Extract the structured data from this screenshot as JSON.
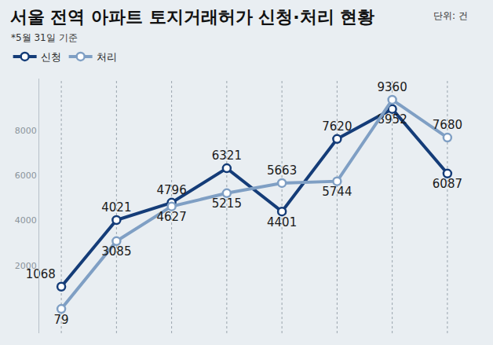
{
  "chart_data": {
    "type": "line",
    "title": "서울 전역 아파트 토지거래허가 신청·처리 현황",
    "subtitle": "*5월 31일 기준",
    "annotations": [
      "단위: 건"
    ],
    "categories": [
      null,
      null,
      null,
      null,
      null,
      null,
      null,
      null
    ],
    "series": [
      {
        "name": "신청",
        "color": "#143c78",
        "values": [
          1068,
          4021,
          4796,
          6321,
          4401,
          7620,
          8952,
          6087
        ]
      },
      {
        "name": "처리",
        "color": "#7f9fc4",
        "values": [
          79,
          3085,
          4627,
          5215,
          5663,
          5744,
          9360,
          7680
        ]
      }
    ],
    "ylim": [
      -1000,
      10300
    ],
    "yticks": [
      2000,
      4000,
      6000,
      8000
    ],
    "grid": true,
    "legend": "top left",
    "data_labels": true,
    "tick_labels": "y",
    "marker": "circle",
    "line_style": "solid"
  }
}
